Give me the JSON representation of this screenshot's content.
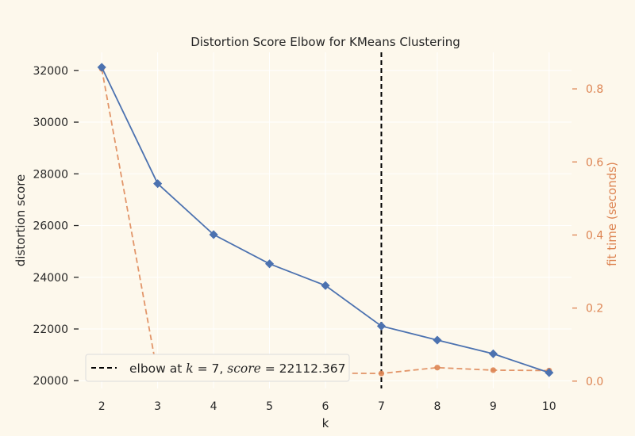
{
  "chart_data": {
    "type": "line",
    "title": "Distortion Score Elbow for KMeans Clustering",
    "xlabel": "k",
    "ylabel": "distortion score",
    "y2label": "fit time (seconds)",
    "x": [
      2,
      3,
      4,
      5,
      6,
      7,
      8,
      9,
      10
    ],
    "xlim": [
      1.6,
      10.4
    ],
    "ylim": [
      19700,
      32700
    ],
    "y2lim": [
      -0.02,
      0.9
    ],
    "xticks": [
      "2",
      "3",
      "4",
      "5",
      "6",
      "7",
      "8",
      "9",
      "10"
    ],
    "yticks": [
      "20000",
      "22000",
      "24000",
      "26000",
      "28000",
      "30000",
      "32000"
    ],
    "y2ticks": [
      "0.0",
      "0.2",
      "0.4",
      "0.6",
      "0.8"
    ],
    "series": [
      {
        "axis": "left",
        "color": "#4c72b0",
        "style": "solid",
        "marker": "diamond",
        "values": [
          32120,
          27620,
          25650,
          24520,
          23680,
          22112.367,
          21570,
          21040,
          20310
        ]
      },
      {
        "axis": "right",
        "color": "#dd8452",
        "style": "dashed",
        "marker": "circle",
        "values": [
          0.855,
          0.017,
          0.016,
          0.028,
          0.022,
          0.021,
          0.037,
          0.03,
          0.029
        ]
      }
    ],
    "elbow": {
      "k": 7,
      "color": "#000000",
      "style": "dashed"
    },
    "legend": {
      "placement": "bottom-left",
      "prefix": "elbow at ",
      "k_symbol": "k",
      "eq_k": " = 7, ",
      "score_symbol": "score",
      "eq_score": " = 22112.367"
    },
    "grid": true
  }
}
